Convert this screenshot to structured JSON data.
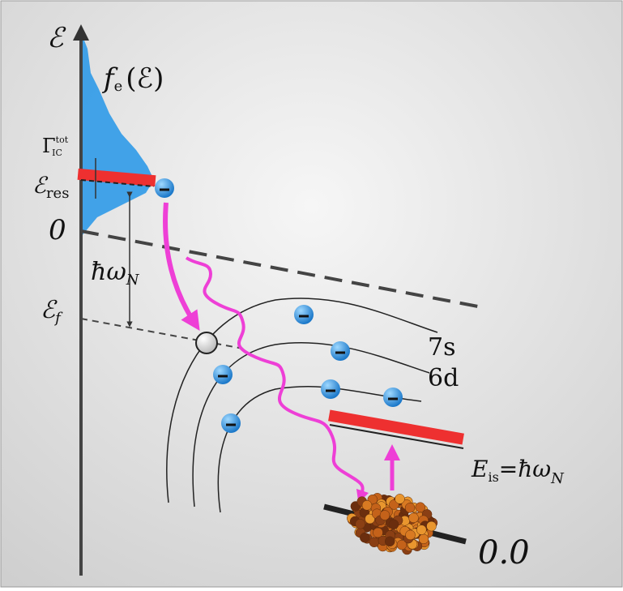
{
  "labels": {
    "energy_axis": "ℰ",
    "distribution": {
      "symbol": "f",
      "subscript": "e",
      "argument": "(ℰ)"
    },
    "width": {
      "symbol": "Γ",
      "superscript": "tot",
      "subscript": "IC"
    },
    "resonance": {
      "symbol": "ℰ",
      "subscript": "res"
    },
    "zero": "0",
    "transfer": {
      "symbol": "ħω",
      "subscript": "N"
    },
    "final": {
      "symbol": "ℰ",
      "subscript": "f"
    },
    "shell_7s": "7s",
    "shell_6d": "6d",
    "isomer": {
      "symbol": "E",
      "subscript": "is",
      "rest": "=ħω",
      "rest_subscript": "N"
    },
    "ground": "0.0"
  }
}
